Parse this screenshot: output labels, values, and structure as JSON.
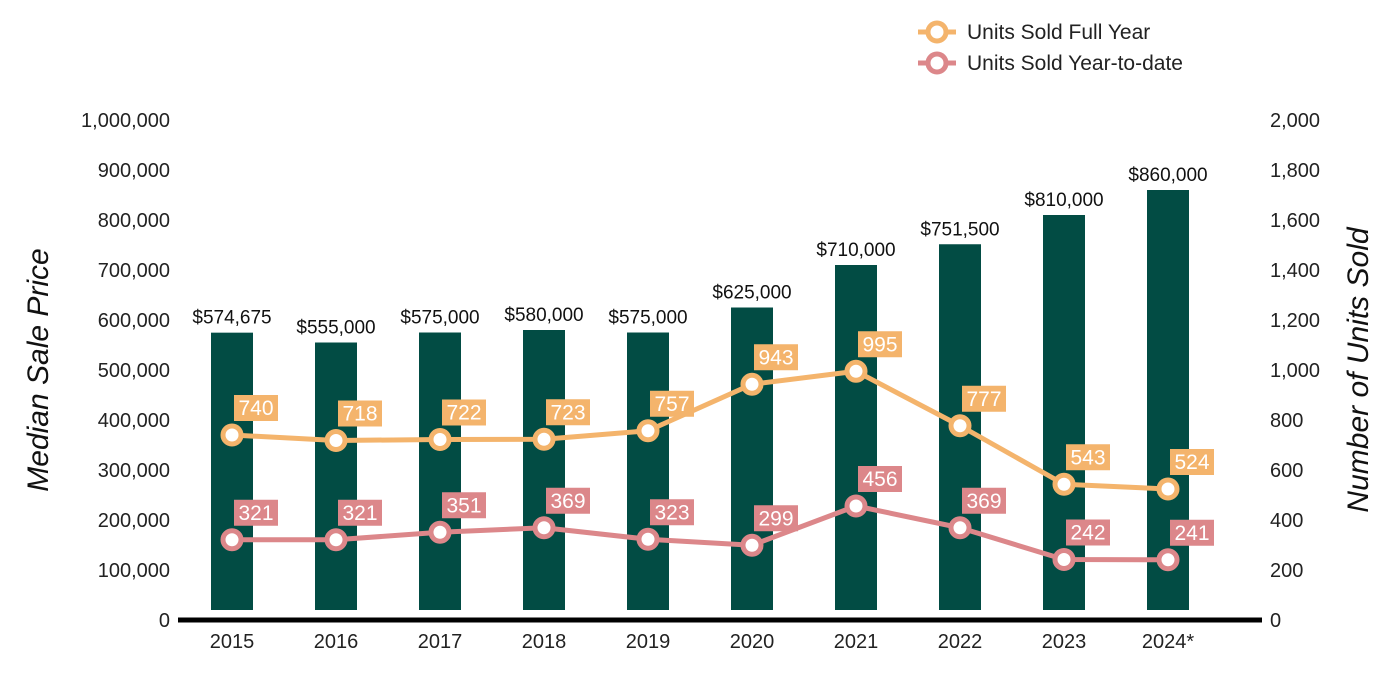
{
  "colors": {
    "bar": "#024C44",
    "full_year": "#F4B46C",
    "ytd": "#DC878A",
    "axis": "#000000",
    "text": "#222222"
  },
  "legend": {
    "full_year": "Units Sold Full Year",
    "ytd": "Units Sold Year-to-date",
    "placement": "top-right"
  },
  "chart_data": {
    "type": "bar",
    "categories": [
      "2015",
      "2016",
      "2017",
      "2018",
      "2019",
      "2020",
      "2021",
      "2022",
      "2023",
      "2024*"
    ],
    "bar_series": {
      "values": [
        574675,
        555000,
        575000,
        580000,
        575000,
        625000,
        710000,
        751500,
        810000,
        860000
      ],
      "labels": [
        "$574,675",
        "$555,000",
        "$575,000",
        "$580,000",
        "$575,000",
        "$625,000",
        "$710,000",
        "$751,500",
        "$810,000",
        "$860,000"
      ]
    },
    "line_series": [
      {
        "name": "Units Sold Full Year",
        "values": [
          740,
          718,
          722,
          723,
          757,
          943,
          995,
          777,
          543,
          524
        ]
      },
      {
        "name": "Units Sold Year-to-date",
        "values": [
          321,
          321,
          351,
          369,
          323,
          299,
          456,
          369,
          242,
          241
        ]
      }
    ],
    "y_left": {
      "label": "Median Sale Price",
      "range": [
        0,
        1000000
      ],
      "ticks": [
        "0",
        "100,000",
        "200,000",
        "300,000",
        "400,000",
        "500,000",
        "600,000",
        "700,000",
        "800,000",
        "900,000",
        "1,000,000"
      ]
    },
    "y_right": {
      "label": "Number of Units Sold",
      "range": [
        0,
        2000
      ],
      "ticks": [
        "0",
        "200",
        "400",
        "600",
        "800",
        "1,000",
        "1,200",
        "1,400",
        "1,600",
        "1,800",
        "2,000"
      ]
    },
    "grid": false
  }
}
